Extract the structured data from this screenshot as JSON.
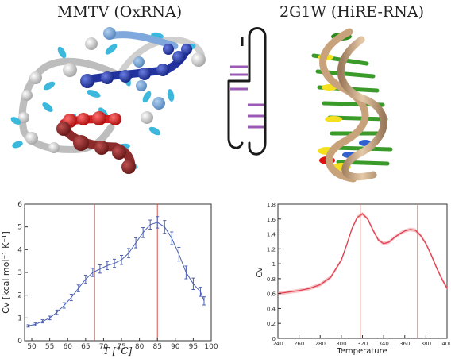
{
  "panels": {
    "left_title": "MMTV (OxRNA)",
    "right_title": "2G1W (HiRE-RNA)"
  },
  "colors": {
    "left_series": "#4a5fb0",
    "left_vlines": "#d05050",
    "right_series": "#e04050",
    "right_band": "#f2a0a8",
    "right_vlines": "#e08a70",
    "hairpin_pairs": "#9b59b6"
  },
  "chart_data": [
    {
      "type": "line",
      "xlabel": "T [°C]",
      "ylabel": "Cv [kcal mol⁻¹ K⁻¹]",
      "xlim": [
        48,
        100
      ],
      "ylim": [
        0,
        6
      ],
      "xticks": [
        50,
        55,
        60,
        65,
        70,
        75,
        80,
        85,
        90,
        95,
        100
      ],
      "yticks": [
        0,
        1,
        2,
        3,
        4,
        5,
        6
      ],
      "grid": false,
      "series": [
        {
          "x": [
            49,
            51,
            53,
            55,
            57,
            59,
            61,
            63,
            65,
            67,
            69,
            71,
            73,
            75,
            77,
            79,
            81,
            83,
            85,
            87,
            89,
            91,
            93,
            95,
            97,
            98
          ],
          "y": [
            0.65,
            0.72,
            0.85,
            1.0,
            1.25,
            1.55,
            1.9,
            2.3,
            2.7,
            3.0,
            3.15,
            3.3,
            3.4,
            3.55,
            3.85,
            4.3,
            4.75,
            5.1,
            5.2,
            5.0,
            4.5,
            3.8,
            3.0,
            2.5,
            2.15,
            1.75
          ],
          "err": [
            0.05,
            0.06,
            0.07,
            0.08,
            0.1,
            0.12,
            0.14,
            0.15,
            0.18,
            0.18,
            0.18,
            0.18,
            0.18,
            0.2,
            0.2,
            0.22,
            0.22,
            0.2,
            0.25,
            0.28,
            0.28,
            0.3,
            0.28,
            0.25,
            0.2,
            0.18
          ]
        }
      ],
      "vlines": [
        67.5,
        85
      ]
    },
    {
      "type": "line",
      "xlabel": "Temperature",
      "ylabel": "Cv",
      "xlim": [
        240,
        400
      ],
      "ylim": [
        0,
        1.8
      ],
      "xticks": [
        240,
        260,
        280,
        300,
        320,
        340,
        360,
        380,
        400
      ],
      "yticks": [
        0,
        0.2,
        0.4,
        0.6,
        0.8,
        1.0,
        1.2,
        1.4,
        1.6,
        1.8
      ],
      "grid": false,
      "series": [
        {
          "x": [
            240,
            250,
            260,
            270,
            280,
            290,
            300,
            305,
            310,
            315,
            320,
            325,
            330,
            335,
            340,
            345,
            350,
            355,
            360,
            365,
            370,
            375,
            380,
            385,
            390,
            395,
            400
          ],
          "y": [
            0.6,
            0.62,
            0.64,
            0.67,
            0.72,
            0.82,
            1.05,
            1.25,
            1.47,
            1.62,
            1.67,
            1.6,
            1.45,
            1.32,
            1.27,
            1.29,
            1.35,
            1.4,
            1.44,
            1.46,
            1.45,
            1.38,
            1.27,
            1.12,
            0.95,
            0.8,
            0.67
          ]
        }
      ],
      "vlines": [
        318,
        372
      ]
    }
  ]
}
